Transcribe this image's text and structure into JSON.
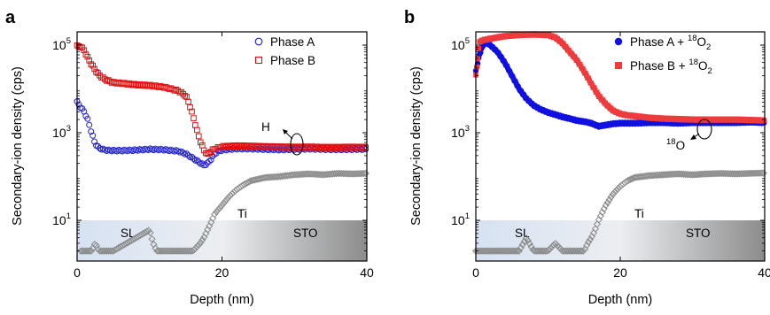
{
  "chart_data": [
    {
      "panel": "a",
      "type": "scatter",
      "xlabel": "Depth (nm)",
      "ylabel": "Secondary-ion density (cps)",
      "xlim": [
        0,
        40
      ],
      "ylim": [
        1,
        300000
      ],
      "yscale": "log",
      "xticks": [
        0,
        20,
        40
      ],
      "yticks": [
        10,
        1000,
        100000
      ],
      "yticklabels": {
        "base": "10",
        "exps": [
          "1",
          "3",
          "5"
        ]
      },
      "legend_position": "top-right",
      "series": [
        {
          "name": "Phase A",
          "marker": "open-circle",
          "color": "#1f1fd6",
          "x": [
            0,
            0.5,
            1,
            1.5,
            2,
            2.5,
            3,
            3.5,
            4,
            5,
            6,
            8,
            10,
            12,
            14,
            15,
            16,
            17,
            17.5,
            18,
            18.5,
            19,
            19.5,
            20,
            21,
            22,
            24,
            26,
            28,
            30,
            32,
            34,
            36,
            38,
            40
          ],
          "y": [
            5000,
            3800,
            3000,
            1900,
            1000,
            560,
            450,
            420,
            400,
            390,
            390,
            400,
            420,
            410,
            380,
            330,
            260,
            205,
            180,
            200,
            250,
            330,
            380,
            400,
            420,
            430,
            430,
            420,
            410,
            420,
            430,
            420,
            415,
            420,
            420
          ]
        },
        {
          "name": "Phase B",
          "marker": "open-square",
          "color": "#e01010",
          "x": [
            0,
            0.5,
            1,
            1.5,
            2,
            2.5,
            3,
            3.5,
            4,
            5,
            6,
            7,
            8,
            10,
            12,
            14,
            15,
            15.5,
            16,
            16.5,
            17,
            17.5,
            18,
            18.5,
            19,
            20,
            22,
            24,
            26,
            28,
            30,
            32,
            34,
            36,
            38,
            40
          ],
          "y": [
            95000,
            93000,
            75000,
            50000,
            36000,
            27000,
            21000,
            18000,
            16000,
            14000,
            13500,
            13000,
            12500,
            12000,
            11000,
            9000,
            7000,
            4500,
            2400,
            1200,
            650,
            400,
            320,
            380,
            430,
            480,
            500,
            490,
            480,
            470,
            465,
            470,
            460,
            460,
            465,
            460
          ]
        },
        {
          "name": "Ti",
          "marker": "open-diamond",
          "color": "#8a8a8a",
          "x": [
            0.5,
            1,
            1.5,
            2,
            2.5,
            3,
            3.5,
            4,
            5,
            10,
            10.5,
            11,
            12,
            15,
            16,
            17,
            17.5,
            18,
            18.5,
            19,
            20,
            21,
            22,
            23,
            24,
            26,
            28,
            30,
            32,
            34,
            36,
            38,
            40
          ],
          "y": [
            2,
            2,
            2,
            2,
            3,
            2,
            2,
            2,
            2,
            6,
            3,
            2,
            2,
            2,
            2,
            3,
            4,
            6,
            9,
            14,
            22,
            35,
            50,
            65,
            80,
            95,
            100,
            110,
            115,
            110,
            118,
            115,
            118
          ]
        }
      ],
      "annotations": [
        {
          "text": "H",
          "at_depth": 30,
          "at_value": 420
        },
        {
          "text": "Ti",
          "at_depth": 21,
          "at_value": 10
        }
      ],
      "regions": [
        {
          "label": "SL",
          "from": 0,
          "to": 18
        },
        {
          "label": "STO",
          "from": 18,
          "to": 40
        }
      ]
    },
    {
      "panel": "b",
      "type": "scatter",
      "xlabel": "Depth (nm)",
      "ylabel": "Secondary-ion density (cps)",
      "xlim": [
        0,
        40
      ],
      "ylim": [
        1,
        300000
      ],
      "yscale": "log",
      "xticks": [
        0,
        20,
        40
      ],
      "yticks": [
        10,
        1000,
        100000
      ],
      "yticklabels": {
        "base": "10",
        "exps": [
          "1",
          "3",
          "5"
        ]
      },
      "legend_position": "top-right",
      "series": [
        {
          "name": "Phase A + 18O2",
          "marker": "filled-circle",
          "color": "#1010e0",
          "x": [
            0,
            0.5,
            1,
            1.5,
            2,
            3,
            4,
            5,
            6,
            7,
            8,
            9,
            10,
            11,
            12,
            13,
            14,
            15,
            16,
            17,
            18,
            19,
            20,
            22,
            24,
            26,
            28,
            30,
            32,
            34,
            36,
            38,
            40
          ],
          "y": [
            25000,
            60000,
            100000,
            115000,
            100000,
            70000,
            40000,
            20000,
            10000,
            6000,
            4200,
            3400,
            2900,
            2600,
            2300,
            2100,
            1900,
            1800,
            1650,
            1400,
            1500,
            1600,
            1650,
            1650,
            1700,
            1700,
            1650,
            1700,
            1700,
            1700,
            1700,
            1750,
            1700
          ]
        },
        {
          "name": "Phase B + 18O2",
          "marker": "filled-square",
          "color": "#ee3b3b",
          "x": [
            0,
            0.5,
            1,
            2,
            3,
            4,
            6,
            8,
            10,
            11,
            12,
            13,
            14,
            15,
            16,
            17,
            18,
            19,
            20,
            21,
            22,
            24,
            26,
            28,
            30,
            32,
            34,
            36,
            38,
            40
          ],
          "y": [
            20000,
            120000,
            130000,
            140000,
            150000,
            160000,
            170000,
            175000,
            170000,
            150000,
            110000,
            70000,
            45000,
            25000,
            13000,
            7000,
            4500,
            3200,
            2700,
            2500,
            2400,
            2200,
            2100,
            2050,
            2000,
            2000,
            2000,
            2000,
            1950,
            1900
          ]
        },
        {
          "name": "Ti",
          "marker": "open-diamond",
          "color": "#8a8a8a",
          "x": [
            0,
            1,
            2,
            3,
            4,
            5,
            6,
            7,
            8,
            9,
            10,
            11,
            12,
            13,
            14,
            15,
            15.5,
            16,
            16.5,
            17,
            17.5,
            18,
            19,
            20,
            21,
            22,
            24,
            26,
            28,
            30,
            32,
            34,
            36,
            38,
            40
          ],
          "y": [
            2,
            2,
            2,
            2,
            2,
            2,
            2,
            4,
            2,
            2,
            2,
            3,
            2,
            2,
            2,
            2,
            3,
            4,
            6,
            10,
            15,
            22,
            40,
            60,
            80,
            95,
            105,
            110,
            115,
            110,
            115,
            118,
            115,
            118,
            120
          ]
        }
      ],
      "annotations": [
        {
          "text": "18O",
          "at_depth": 32,
          "at_value": 1700
        },
        {
          "text": "Ti",
          "at_depth": 21,
          "at_value": 10
        }
      ],
      "regions": [
        {
          "label": "SL",
          "from": 0,
          "to": 18
        },
        {
          "label": "STO",
          "from": 18,
          "to": 40
        }
      ]
    }
  ],
  "panels": [
    {
      "label": "a",
      "xlabel": "Depth (nm)",
      "ylabel": "Secondary-ion density (cps)",
      "xticks": [
        "0",
        "20",
        "40"
      ],
      "ytick_base": "10",
      "ytick_exps": [
        "1",
        "3",
        "5"
      ],
      "legend": [
        {
          "text": "Phase A"
        },
        {
          "text": "Phase B"
        }
      ],
      "ann_element": "H",
      "ti": "Ti",
      "sl": "SL",
      "sto": "STO"
    },
    {
      "label": "b",
      "xlabel": "Depth (nm)",
      "ylabel": "Secondary-ion density (cps)",
      "xticks": [
        "0",
        "20",
        "40"
      ],
      "ytick_base": "10",
      "ytick_exps": [
        "1",
        "3",
        "5"
      ],
      "legend": [
        {
          "text": "Phase A + ",
          "sup": "18",
          "mid": "O",
          "sub": "2"
        },
        {
          "text": "Phase B + ",
          "sup": "18",
          "mid": "O",
          "sub": "2"
        }
      ],
      "ann_sup": "18",
      "ann_element": "O",
      "ti": "Ti",
      "sl": "SL",
      "sto": "STO"
    }
  ]
}
